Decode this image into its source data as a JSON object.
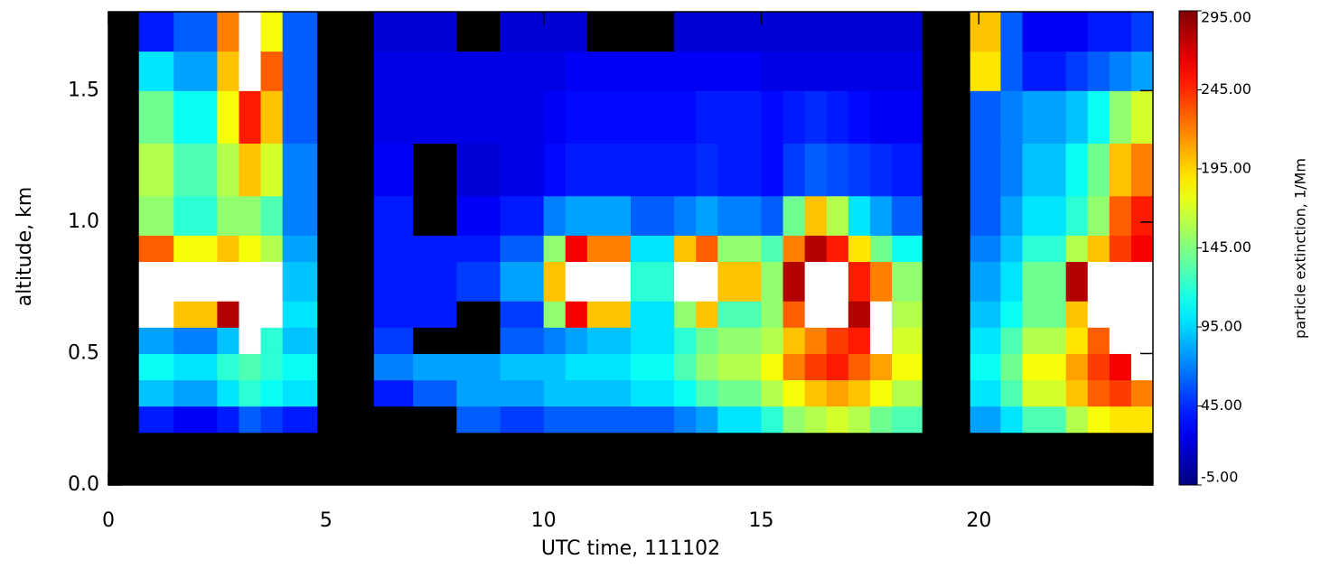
{
  "chart_data": {
    "type": "heatmap",
    "xlabel": "UTC time, 111102",
    "ylabel": "altitude, km",
    "colorbar_label": "particle extinction, 1/Mm",
    "xlim": [
      0,
      24
    ],
    "ylim": [
      0,
      1.8
    ],
    "xticks": [
      0,
      5,
      10,
      15,
      20
    ],
    "yticks": [
      {
        "value": 0,
        "label": "0.0"
      },
      0.5,
      {
        "value": 1,
        "label": "1.0"
      },
      1.5
    ],
    "clim": [
      -5,
      295
    ],
    "cticks": [
      {
        "value": -5,
        "label": "-5.00"
      },
      {
        "value": 45,
        "label": "45.00"
      },
      {
        "value": 95,
        "label": "95.00"
      },
      {
        "value": 145,
        "label": "145.00"
      },
      {
        "value": 195,
        "label": "195.00"
      },
      {
        "value": 245,
        "label": "245.00"
      },
      {
        "value": 295,
        "label": "295.00"
      }
    ],
    "colormap": "jet",
    "missing_color": "#000000",
    "over_color": "#ffffff",
    "x_bins": [
      0,
      0.7,
      1.5,
      2.5,
      3.0,
      3.5,
      4.0,
      4.8,
      6.1,
      7,
      8,
      9,
      10,
      10.5,
      11,
      12,
      13,
      13.5,
      14,
      15,
      15.5,
      16,
      16.5,
      17,
      17.5,
      18,
      18.7,
      19.8,
      20.5,
      21,
      22,
      22.5,
      23,
      23.5,
      24
    ],
    "y_bins": [
      0,
      0.2,
      0.3,
      0.4,
      0.5,
      0.6,
      0.7,
      0.85,
      0.95,
      1.1,
      1.3,
      1.5,
      1.65,
      1.8
    ],
    "values": [
      [
        null,
        null,
        null,
        null,
        null,
        null,
        null,
        null,
        null,
        null,
        null,
        null,
        null,
        null,
        null,
        null,
        null,
        null,
        null,
        null,
        null,
        null,
        null,
        null,
        null,
        null,
        null,
        null,
        null,
        null,
        null,
        null,
        null,
        null
      ],
      [
        null,
        40,
        30,
        40,
        60,
        50,
        40,
        null,
        null,
        null,
        60,
        50,
        60,
        60,
        60,
        60,
        70,
        80,
        100,
        120,
        150,
        160,
        170,
        160,
        140,
        130,
        null,
        80,
        100,
        130,
        160,
        180,
        190,
        190
      ],
      [
        null,
        90,
        80,
        100,
        120,
        110,
        100,
        null,
        40,
        60,
        80,
        80,
        90,
        90,
        90,
        100,
        110,
        130,
        140,
        160,
        180,
        200,
        210,
        200,
        180,
        160,
        null,
        100,
        130,
        170,
        200,
        230,
        240,
        220
      ],
      [
        null,
        110,
        100,
        120,
        130,
        120,
        110,
        null,
        70,
        80,
        80,
        90,
        90,
        100,
        100,
        110,
        130,
        150,
        160,
        180,
        220,
        240,
        250,
        230,
        210,
        180,
        null,
        110,
        140,
        180,
        210,
        240,
        260,
        310
      ],
      [
        null,
        80,
        70,
        90,
        310,
        120,
        90,
        null,
        50,
        null,
        null,
        60,
        70,
        80,
        90,
        100,
        120,
        140,
        150,
        160,
        200,
        220,
        240,
        250,
        310,
        170,
        null,
        100,
        130,
        160,
        190,
        230,
        310,
        310
      ],
      [
        null,
        310,
        200,
        280,
        310,
        310,
        100,
        null,
        40,
        40,
        null,
        50,
        150,
        260,
        200,
        100,
        150,
        200,
        130,
        150,
        230,
        310,
        310,
        280,
        310,
        160,
        null,
        90,
        110,
        140,
        200,
        310,
        310,
        310
      ],
      [
        null,
        310,
        310,
        310,
        310,
        310,
        90,
        null,
        40,
        40,
        50,
        80,
        200,
        310,
        310,
        120,
        310,
        310,
        200,
        150,
        280,
        310,
        310,
        250,
        220,
        150,
        null,
        80,
        100,
        140,
        280,
        310,
        310,
        310
      ],
      [
        null,
        230,
        180,
        200,
        180,
        160,
        80,
        null,
        40,
        40,
        40,
        60,
        150,
        260,
        220,
        100,
        200,
        230,
        150,
        130,
        220,
        280,
        250,
        190,
        140,
        110,
        null,
        70,
        90,
        120,
        160,
        200,
        240,
        260
      ],
      [
        null,
        150,
        120,
        150,
        150,
        130,
        70,
        null,
        40,
        null,
        30,
        40,
        70,
        80,
        80,
        60,
        70,
        80,
        70,
        60,
        140,
        200,
        160,
        100,
        80,
        60,
        null,
        60,
        80,
        100,
        120,
        150,
        230,
        250
      ],
      [
        null,
        160,
        130,
        160,
        200,
        170,
        70,
        null,
        30,
        null,
        20,
        25,
        35,
        40,
        40,
        40,
        40,
        45,
        40,
        35,
        50,
        60,
        55,
        50,
        45,
        40,
        null,
        60,
        70,
        90,
        110,
        140,
        200,
        220
      ],
      [
        null,
        140,
        110,
        180,
        250,
        200,
        60,
        null,
        25,
        25,
        25,
        25,
        30,
        35,
        35,
        35,
        35,
        40,
        40,
        35,
        40,
        45,
        40,
        35,
        30,
        30,
        null,
        60,
        70,
        80,
        90,
        110,
        150,
        170
      ],
      [
        null,
        100,
        80,
        200,
        310,
        230,
        60,
        null,
        25,
        25,
        25,
        25,
        25,
        30,
        30,
        30,
        30,
        30,
        30,
        25,
        25,
        25,
        25,
        25,
        25,
        25,
        null,
        190,
        60,
        40,
        50,
        60,
        70,
        80
      ],
      [
        null,
        40,
        60,
        220,
        310,
        180,
        60,
        null,
        20,
        20,
        null,
        20,
        20,
        20,
        null,
        null,
        20,
        20,
        20,
        20,
        20,
        20,
        20,
        20,
        20,
        20,
        null,
        200,
        60,
        30,
        30,
        40,
        40,
        50
      ]
    ]
  }
}
